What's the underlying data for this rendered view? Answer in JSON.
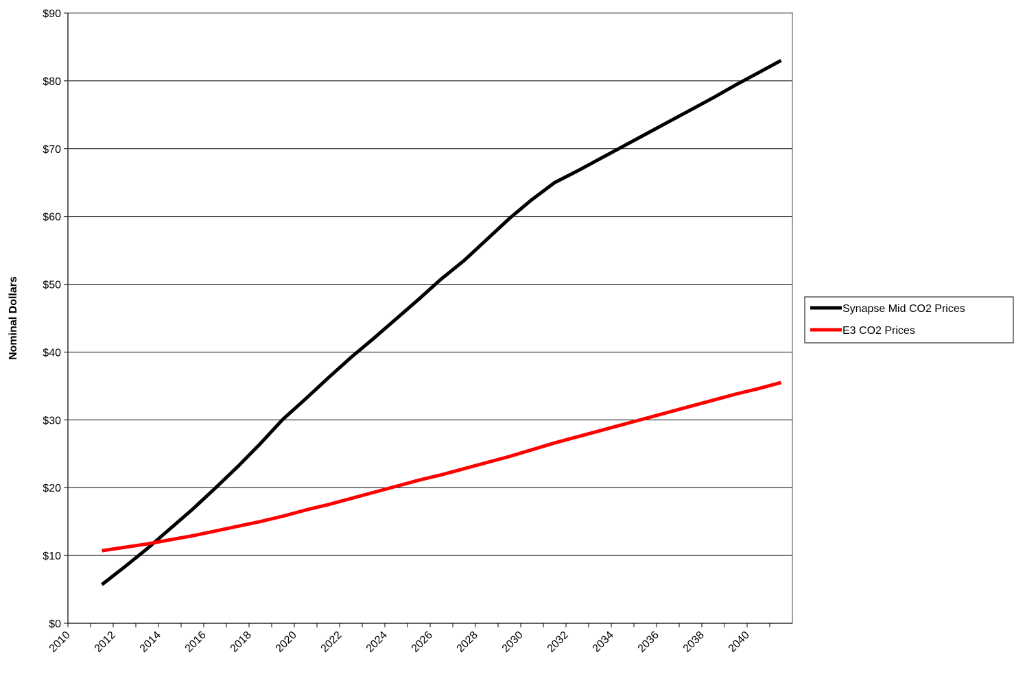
{
  "chart_data": {
    "type": "line",
    "y_label": "Nominal Dollars",
    "x": [
      2011.5,
      2012.5,
      2013.5,
      2014.5,
      2015.5,
      2016.5,
      2017.5,
      2018.5,
      2019.5,
      2020.5,
      2021.5,
      2022.5,
      2023.5,
      2024.5,
      2025.5,
      2026.5,
      2027.5,
      2028.5,
      2029.5,
      2030.5,
      2031.5,
      2032.5,
      2033.5,
      2034.5,
      2035.5,
      2036.5,
      2037.5,
      2038.5,
      2039.5,
      2040.5,
      2041.5
    ],
    "series": [
      {
        "name": "Synapse Mid CO2 Prices",
        "color": "#000000",
        "values": [
          5.7,
          8.3,
          11.0,
          13.9,
          16.8,
          19.9,
          23.1,
          26.5,
          30.1,
          33.1,
          36.2,
          39.2,
          42.0,
          44.9,
          47.8,
          50.8,
          53.5,
          56.6,
          59.7,
          62.5,
          65.0,
          66.7,
          68.5,
          70.3,
          72.1,
          73.9,
          75.7,
          77.5,
          79.4,
          81.2,
          83.0
        ]
      },
      {
        "name": "E3 CO2 Prices",
        "color": "#ff0000",
        "values": [
          10.7,
          11.2,
          11.7,
          12.3,
          12.9,
          13.6,
          14.3,
          15.0,
          15.8,
          16.7,
          17.5,
          18.4,
          19.3,
          20.2,
          21.1,
          21.9,
          22.8,
          23.7,
          24.6,
          25.6,
          26.6,
          27.5,
          28.4,
          29.3,
          30.2,
          31.1,
          32.0,
          32.9,
          33.8,
          34.6,
          35.5
        ]
      }
    ],
    "xlim": [
      2010,
      2042
    ],
    "xticks": [
      2010,
      2012,
      2014,
      2016,
      2018,
      2020,
      2022,
      2024,
      2026,
      2028,
      2030,
      2032,
      2034,
      2036,
      2038,
      2040
    ],
    "xminorticks": [
      2011,
      2013,
      2015,
      2017,
      2019,
      2021,
      2023,
      2025,
      2027,
      2029,
      2031,
      2033,
      2035,
      2037,
      2039,
      2041
    ],
    "ylim": [
      0,
      90
    ],
    "yticks": [
      {
        "value": 0,
        "label": "$0"
      },
      {
        "value": 10,
        "label": "$10"
      },
      {
        "value": 20,
        "label": "$20"
      },
      {
        "value": 30,
        "label": "$30"
      },
      {
        "value": 40,
        "label": "$40"
      },
      {
        "value": 50,
        "label": "$50"
      },
      {
        "value": 60,
        "label": "$60"
      },
      {
        "value": 70,
        "label": "$70"
      },
      {
        "value": 80,
        "label": "$80"
      },
      {
        "value": 90,
        "label": "$90"
      }
    ],
    "grid": true,
    "legend": "right"
  }
}
